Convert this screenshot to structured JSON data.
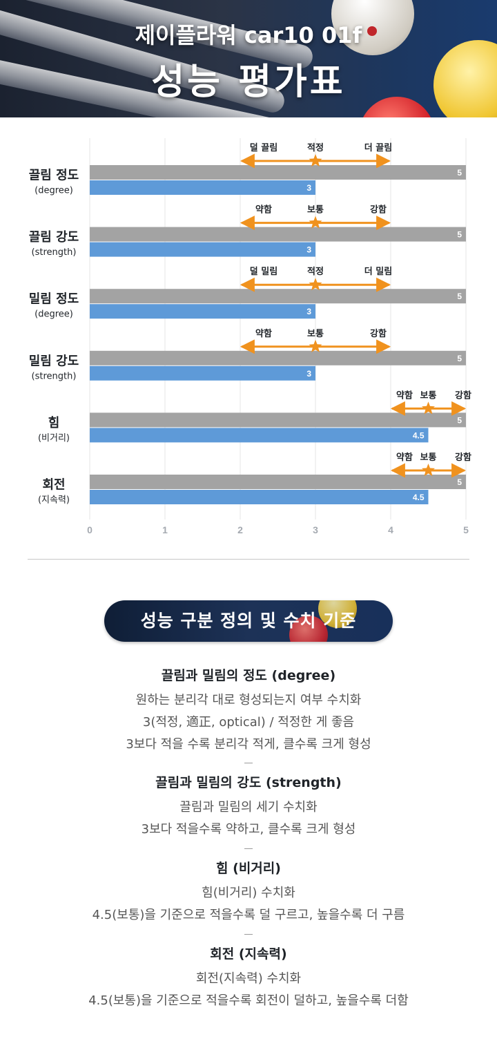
{
  "header": {
    "subtitle": "제이플라워 car10 01f",
    "title": "성능 평가표"
  },
  "chart_data": {
    "type": "bar",
    "orientation": "horizontal",
    "xlim": [
      0,
      5
    ],
    "x_ticks": [
      "0",
      "1",
      "2",
      "3",
      "4",
      "5"
    ],
    "grid": true,
    "colors": {
      "max": "#a3a3a3",
      "value": "#5e9ad8",
      "marker": "#f0921e"
    },
    "rows": [
      {
        "label": "끌림 정도",
        "sub": "(degree)",
        "max": 5,
        "value": 3,
        "scale": {
          "labels": [
            "덜 끌림",
            "적정",
            "더 끌림"
          ],
          "from": 2,
          "to": 4,
          "mark": 3
        }
      },
      {
        "label": "끌림 강도",
        "sub": "(strength)",
        "max": 5,
        "value": 3,
        "scale": {
          "labels": [
            "약함",
            "보통",
            "강함"
          ],
          "from": 2,
          "to": 4,
          "mark": 3
        }
      },
      {
        "label": "밀림 정도",
        "sub": "(degree)",
        "max": 5,
        "value": 3,
        "scale": {
          "labels": [
            "덜 밀림",
            "적정",
            "더 밀림"
          ],
          "from": 2,
          "to": 4,
          "mark": 3
        }
      },
      {
        "label": "밀림 강도",
        "sub": "(strength)",
        "max": 5,
        "value": 3,
        "scale": {
          "labels": [
            "약함",
            "보통",
            "강함"
          ],
          "from": 2,
          "to": 4,
          "mark": 3
        }
      },
      {
        "label": "힘",
        "sub": "(비거리)",
        "max": 5,
        "value": 4.5,
        "scale": {
          "labels": [
            "약함",
            "보통",
            "강함"
          ],
          "from": 4,
          "to": 5,
          "mark": 4.5
        }
      },
      {
        "label": "회전",
        "sub": "(지속력)",
        "max": 5,
        "value": 4.5,
        "scale": {
          "labels": [
            "약함",
            "보통",
            "강함"
          ],
          "from": 4,
          "to": 5,
          "mark": 4.5
        }
      }
    ]
  },
  "definitions": {
    "heading": "성능 구분 정의 및 수치 기준",
    "separator": "–",
    "items": [
      {
        "title": "끌림과 밀림의 정도 (degree)",
        "lines": [
          "원하는 분리각 대로 형성되는지 여부 수치화",
          "3(적정, 適正, optical) / 적정한 게 좋음",
          "3보다 적을 수록 분리각 적게, 클수록 크게 형성"
        ]
      },
      {
        "title": "끌림과 밀림의 강도 (strength)",
        "lines": [
          "끌림과 밀림의 세기 수치화",
          "3보다 적을수록 약하고, 클수록 크게 형성"
        ]
      },
      {
        "title": "힘 (비거리)",
        "lines": [
          "힘(비거리) 수치화",
          "4.5(보통)을 기준으로 적을수록 덜 구르고, 높을수록 더 구름"
        ]
      },
      {
        "title": "회전 (지속력)",
        "lines": [
          "회전(지속력) 수치화",
          "4.5(보통)을 기준으로 적을수록 회전이 덜하고, 높을수록 더함"
        ]
      }
    ]
  }
}
